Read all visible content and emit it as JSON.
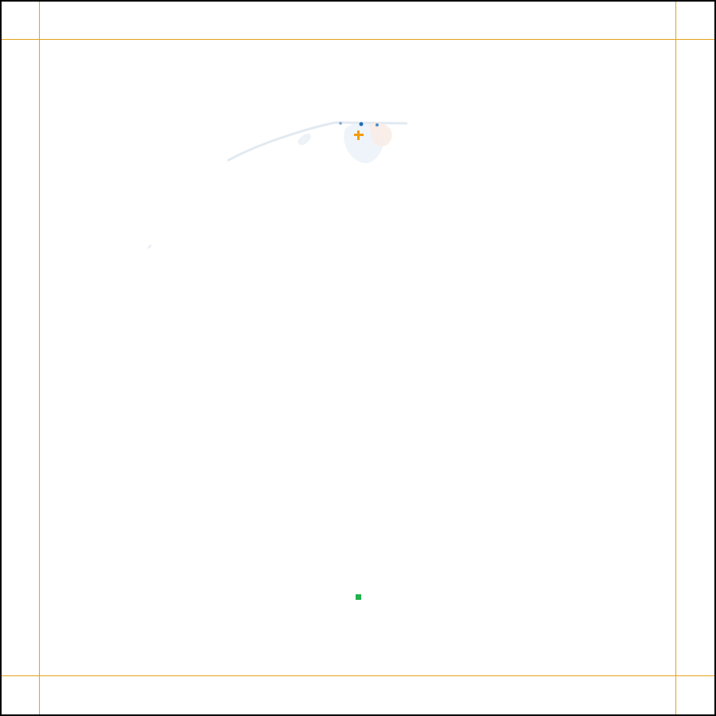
{
  "colors": {
    "guide": "#e3a21a",
    "crosshair": "#f39c12",
    "target": "#22b14c",
    "frame": "#000000",
    "art_blue": "#1f6fb8",
    "art_pale": "#e9f1f8",
    "art_peach": "#f7e8df"
  },
  "icons": {
    "crosshair": "plus-crosshair-icon",
    "target": "green-square-marker-icon"
  }
}
